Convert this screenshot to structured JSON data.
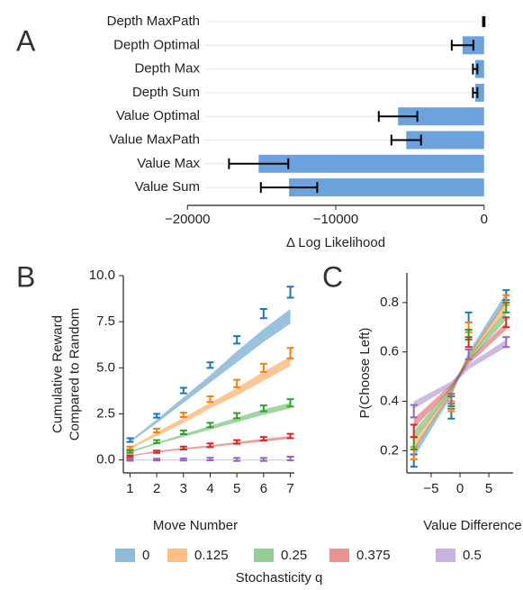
{
  "chart_data": [
    {
      "type": "bar",
      "orientation": "horizontal",
      "panel_label": "A",
      "categories": [
        "Depth MaxPath",
        "Depth Optimal",
        "Depth Max",
        "Depth Sum",
        "Value Optimal",
        "Value MaxPath",
        "Value Max",
        "Value Sum"
      ],
      "values": [
        -20,
        -1450,
        -600,
        -600,
        -5800,
        -5250,
        -15200,
        -13150
      ],
      "errors": [
        50,
        730,
        150,
        150,
        1300,
        1000,
        2000,
        1900
      ],
      "color": "#6ca3dc",
      "error_color": "#000000",
      "xlabel": "Δ Log Likelihood",
      "xlim": [
        -20500,
        500
      ],
      "xticks": [
        {
          "value": -20000,
          "label": "−20000"
        },
        {
          "value": -10000,
          "label": "−10000"
        },
        0
      ],
      "grid": true
    },
    {
      "type": "line",
      "panel_label": "B",
      "x": [
        1,
        2,
        3,
        4,
        5,
        6,
        7
      ],
      "series": [
        {
          "name": "0",
          "color": "#1f77b4",
          "values": [
            1.08,
            2.4,
            3.77,
            5.15,
            6.52,
            7.94,
            9.1
          ],
          "errors": [
            0.1,
            0.1,
            0.15,
            0.15,
            0.2,
            0.25,
            0.3
          ],
          "band_lower": [
            0.95,
            2.0,
            3.1,
            4.2,
            5.3,
            6.4,
            7.4
          ],
          "band_upper": [
            1.05,
            2.2,
            3.4,
            4.6,
            5.9,
            7.1,
            8.2
          ]
        },
        {
          "name": "0.125",
          "color": "#ff7f0e",
          "values": [
            0.65,
            1.6,
            2.45,
            3.3,
            4.15,
            5.0,
            5.8
          ],
          "errors": [
            0.08,
            0.1,
            0.12,
            0.15,
            0.2,
            0.22,
            0.28
          ],
          "band_lower": [
            0.6,
            1.3,
            2.0,
            2.8,
            3.5,
            4.3,
            5.1
          ],
          "band_upper": [
            0.7,
            1.5,
            2.3,
            3.1,
            3.9,
            4.8,
            5.6
          ]
        },
        {
          "name": "0.25",
          "color": "#2ca02c",
          "values": [
            0.45,
            1.0,
            1.5,
            1.9,
            2.4,
            2.8,
            3.1
          ],
          "errors": [
            0.06,
            0.08,
            0.1,
            0.12,
            0.14,
            0.16,
            0.2
          ],
          "band_lower": [
            0.4,
            0.85,
            1.25,
            1.65,
            2.05,
            2.45,
            2.8
          ],
          "band_upper": [
            0.5,
            0.95,
            1.4,
            1.85,
            2.3,
            2.75,
            3.1
          ]
        },
        {
          "name": "0.375",
          "color": "#d62728",
          "values": [
            0.2,
            0.45,
            0.65,
            0.8,
            0.98,
            1.15,
            1.3
          ],
          "errors": [
            0.05,
            0.06,
            0.08,
            0.1,
            0.1,
            0.1,
            0.12
          ],
          "band_lower": [
            0.2,
            0.4,
            0.55,
            0.7,
            0.85,
            1.0,
            1.15
          ],
          "band_upper": [
            0.25,
            0.5,
            0.65,
            0.8,
            0.98,
            1.15,
            1.3
          ]
        },
        {
          "name": "0.5",
          "color": "#9467bd",
          "values": [
            0.0,
            0.02,
            0.03,
            0.05,
            0.03,
            0.03,
            0.08
          ],
          "errors": [
            0.04,
            0.05,
            0.06,
            0.07,
            0.08,
            0.08,
            0.1
          ],
          "band_lower": [
            -0.03,
            -0.03,
            -0.03,
            -0.03,
            -0.03,
            -0.03,
            -0.03
          ],
          "band_upper": [
            0.02,
            0.02,
            0.02,
            0.02,
            0.02,
            0.02,
            0.02
          ]
        }
      ],
      "xlabel": "Move Number",
      "ylabel": [
        "Cumulative Reward",
        "Compared to Random"
      ],
      "xlim": [
        0.75,
        7.15
      ],
      "ylim": [
        -0.7,
        10.0
      ],
      "xticks": [
        1,
        2,
        3,
        4,
        5,
        6,
        7
      ],
      "yticks": [
        {
          "value": 0,
          "label": "0.0"
        },
        2.5,
        {
          "value": 5,
          "label": "5.0"
        },
        7.5,
        {
          "value": 10,
          "label": "10.0"
        }
      ],
      "legend_title": "Stochasticity q"
    },
    {
      "type": "line",
      "panel_label": "C",
      "x": [
        -8,
        -1.5,
        1.5,
        8
      ],
      "series": [
        {
          "color": "#1f77b4",
          "values": [
            0.16,
            0.35,
            0.74,
            0.83
          ],
          "errors": [
            0.025,
            0.02,
            0.02,
            0.02
          ],
          "band_lower": [
            0.17,
            0.42,
            0.58,
            0.8
          ],
          "band_upper": [
            0.21,
            0.44,
            0.6,
            0.84
          ]
        },
        {
          "color": "#ff7f0e",
          "values": [
            0.19,
            0.38,
            0.7,
            0.81
          ],
          "errors": [
            0.025,
            0.02,
            0.02,
            0.02
          ],
          "band_lower": [
            0.2,
            0.43,
            0.57,
            0.77
          ],
          "band_upper": [
            0.24,
            0.45,
            0.59,
            0.81
          ]
        },
        {
          "color": "#2ca02c",
          "values": [
            0.23,
            0.4,
            0.67,
            0.78
          ],
          "errors": [
            0.025,
            0.02,
            0.02,
            0.02
          ],
          "band_lower": [
            0.24,
            0.44,
            0.56,
            0.73
          ],
          "band_upper": [
            0.28,
            0.46,
            0.58,
            0.77
          ]
        },
        {
          "color": "#d62728",
          "values": [
            0.28,
            0.41,
            0.64,
            0.72
          ],
          "errors": [
            0.025,
            0.02,
            0.02,
            0.02
          ],
          "band_lower": [
            0.29,
            0.45,
            0.55,
            0.69
          ],
          "band_upper": [
            0.33,
            0.47,
            0.57,
            0.72
          ]
        },
        {
          "color": "#9467bd",
          "values": [
            0.36,
            0.41,
            0.59,
            0.64
          ],
          "errors": [
            0.025,
            0.02,
            0.02,
            0.02
          ],
          "band_lower": [
            0.37,
            0.46,
            0.53,
            0.62
          ],
          "band_upper": [
            0.4,
            0.48,
            0.55,
            0.65
          ]
        }
      ],
      "xlabel": "Value Difference",
      "ylabel": "P(Choose Left)",
      "xlim": [
        -9.2,
        9.2
      ],
      "ylim": [
        0.11,
        0.92
      ],
      "xticks": [
        {
          "value": -5,
          "label": "−5"
        },
        0,
        5
      ],
      "yticks": [
        0.2,
        0.4,
        0.6,
        0.8
      ]
    }
  ]
}
